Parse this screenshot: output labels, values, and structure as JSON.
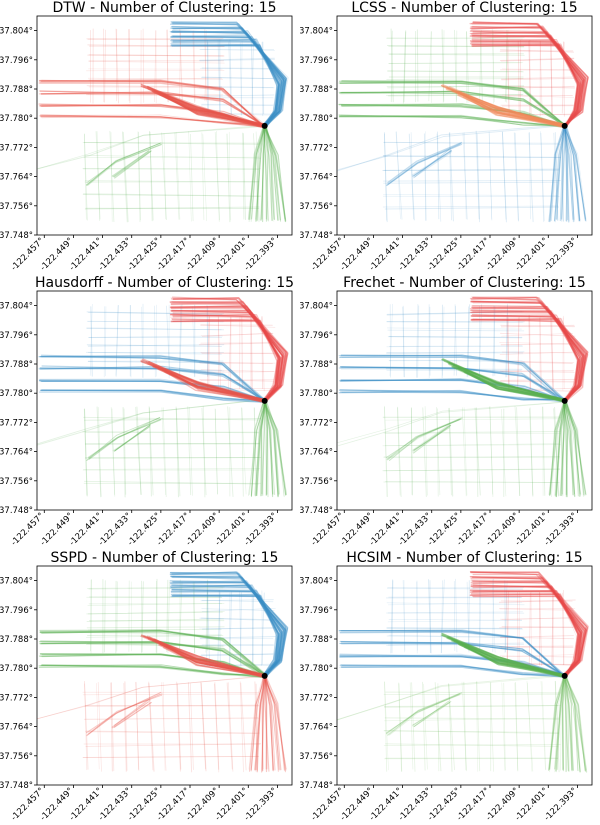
{
  "figure": {
    "panels": [
      {
        "id": "dtw",
        "title": "DTW - Number of Clustering: 15",
        "colors": {
          "n": "#e7554b",
          "e": "#3d8fc7",
          "s": "#5aaf50",
          "c": "#e7554b"
        }
      },
      {
        "id": "lcss",
        "title": "LCSS - Number of Clustering: 15",
        "colors": {
          "n": "#5aaf50",
          "e": "#e74b4b",
          "s": "#3d8fc7",
          "c": "#f08a5a"
        }
      },
      {
        "id": "hausdorff",
        "title": "Hausdorff - Number of Clustering: 15",
        "colors": {
          "n": "#3d8fc7",
          "e": "#e74b4b",
          "s": "#5aaf50",
          "c": "#e7554b"
        }
      },
      {
        "id": "frechet",
        "title": "Frechet - Number of Clustering: 15",
        "colors": {
          "n": "#3d8fc7",
          "e": "#e74b4b",
          "s": "#5aaf50",
          "c": "#5aaf50"
        }
      },
      {
        "id": "sspd",
        "title": "SSPD - Number of Clustering: 15",
        "colors": {
          "n": "#5aaf50",
          "e": "#3d8fc7",
          "s": "#e7554b",
          "c": "#e7554b"
        }
      },
      {
        "id": "hcsim",
        "title": "HCSIM - Number of Clustering: 15",
        "colors": {
          "n": "#3d8fc7",
          "e": "#e74b4b",
          "s": "#6dbb5e",
          "c": "#5aaf50"
        }
      }
    ]
  },
  "chart_data": {
    "type": "scatter",
    "subtype": "trajectory-cluster-map",
    "xlim": [
      -122.459,
      -122.389
    ],
    "ylim": [
      37.748,
      37.808
    ],
    "x_ticks": [
      "-122.457°",
      "-122.449°",
      "-122.441°",
      "-122.433°",
      "-122.425°",
      "-122.417°",
      "-122.409°",
      "-122.401°",
      "-122.393°"
    ],
    "y_ticks": [
      "37.804°",
      "37.796°",
      "37.788°",
      "37.780°",
      "37.772°",
      "37.764°",
      "37.756°",
      "37.748°"
    ],
    "x_tick_values": [
      -122.457,
      -122.449,
      -122.441,
      -122.433,
      -122.425,
      -122.417,
      -122.409,
      -122.401,
      -122.393
    ],
    "y_tick_values": [
      37.804,
      37.796,
      37.788,
      37.78,
      37.772,
      37.764,
      37.756,
      37.748
    ],
    "hub_point": {
      "lon": -122.3965,
      "lat": 37.7779
    },
    "n_clusters": 15
  }
}
